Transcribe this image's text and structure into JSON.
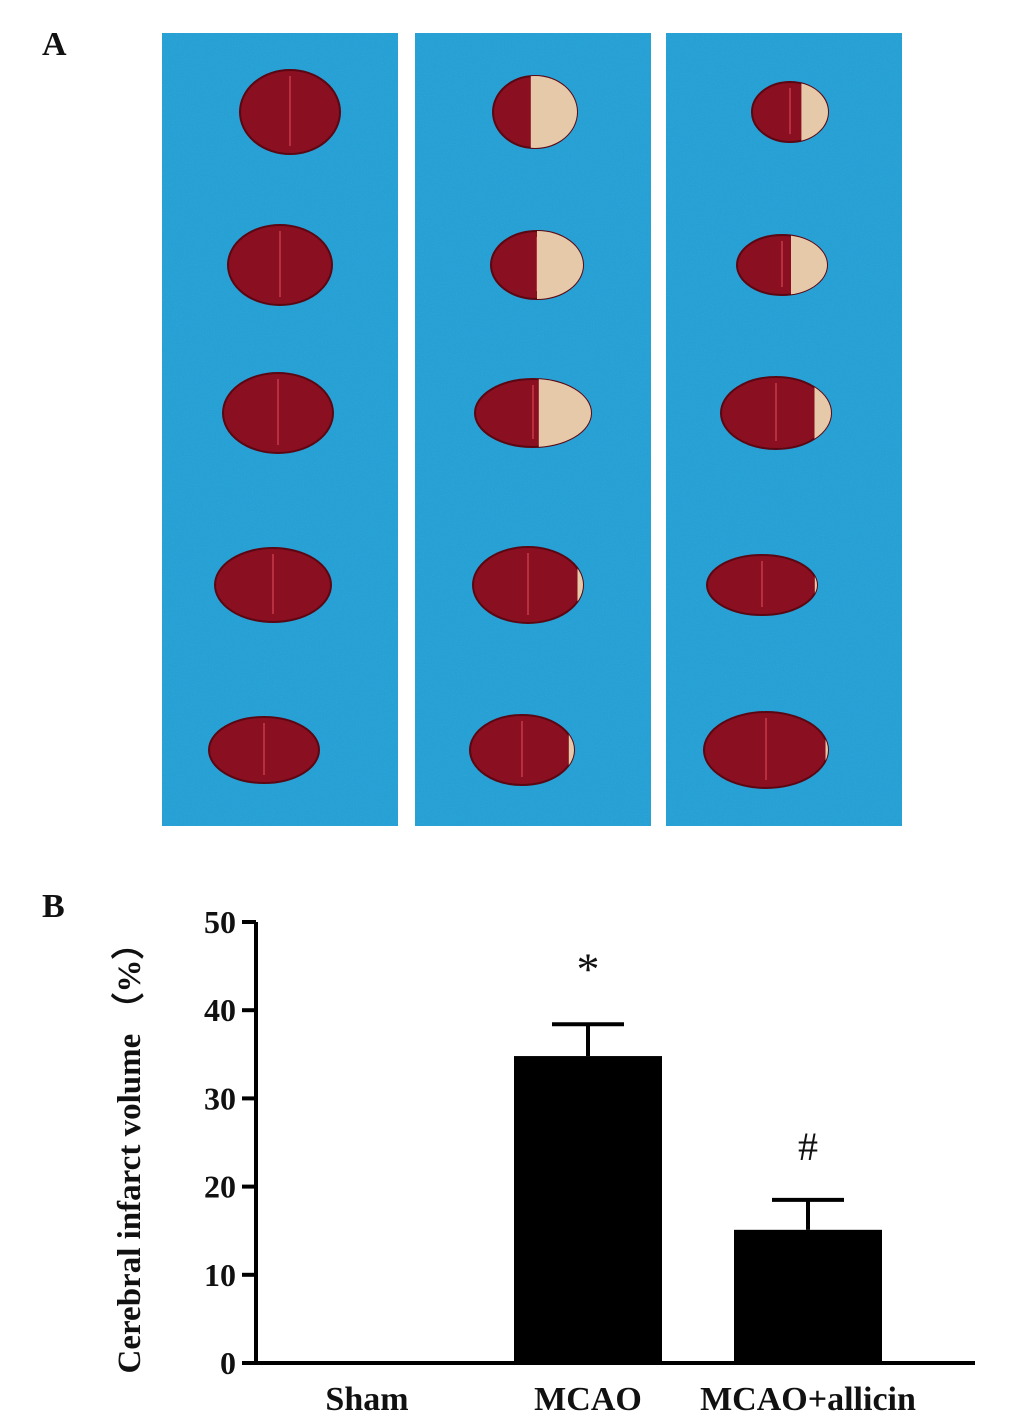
{
  "panels": {
    "a_label": "A",
    "b_label": "B"
  },
  "photo": {
    "background_color": "#1f9fd6",
    "tissue_color": "#8a0f20",
    "infarct_color": "#e6c9a8",
    "columns": [
      {
        "slices": [
          0,
          0,
          0,
          0,
          0
        ]
      },
      {
        "slices": [
          0.55,
          0.5,
          0.45,
          0.05,
          0.05
        ]
      },
      {
        "slices": [
          0.35,
          0.4,
          0.15,
          0.02,
          0.02
        ]
      }
    ]
  },
  "chart_data": {
    "type": "bar",
    "categories": [
      "Sham",
      "MCAO",
      "MCAO+allicin"
    ],
    "values": [
      0,
      34.8,
      15.1
    ],
    "errors": [
      0,
      3.6,
      3.4
    ],
    "annotations": [
      "",
      "*",
      "#"
    ],
    "ylabel": "Cerebral infarct volume （%）",
    "ylim": [
      0,
      50
    ],
    "yticks": [
      0,
      10,
      20,
      30,
      40,
      50
    ],
    "bar_color": "#000000",
    "grid": false
  }
}
